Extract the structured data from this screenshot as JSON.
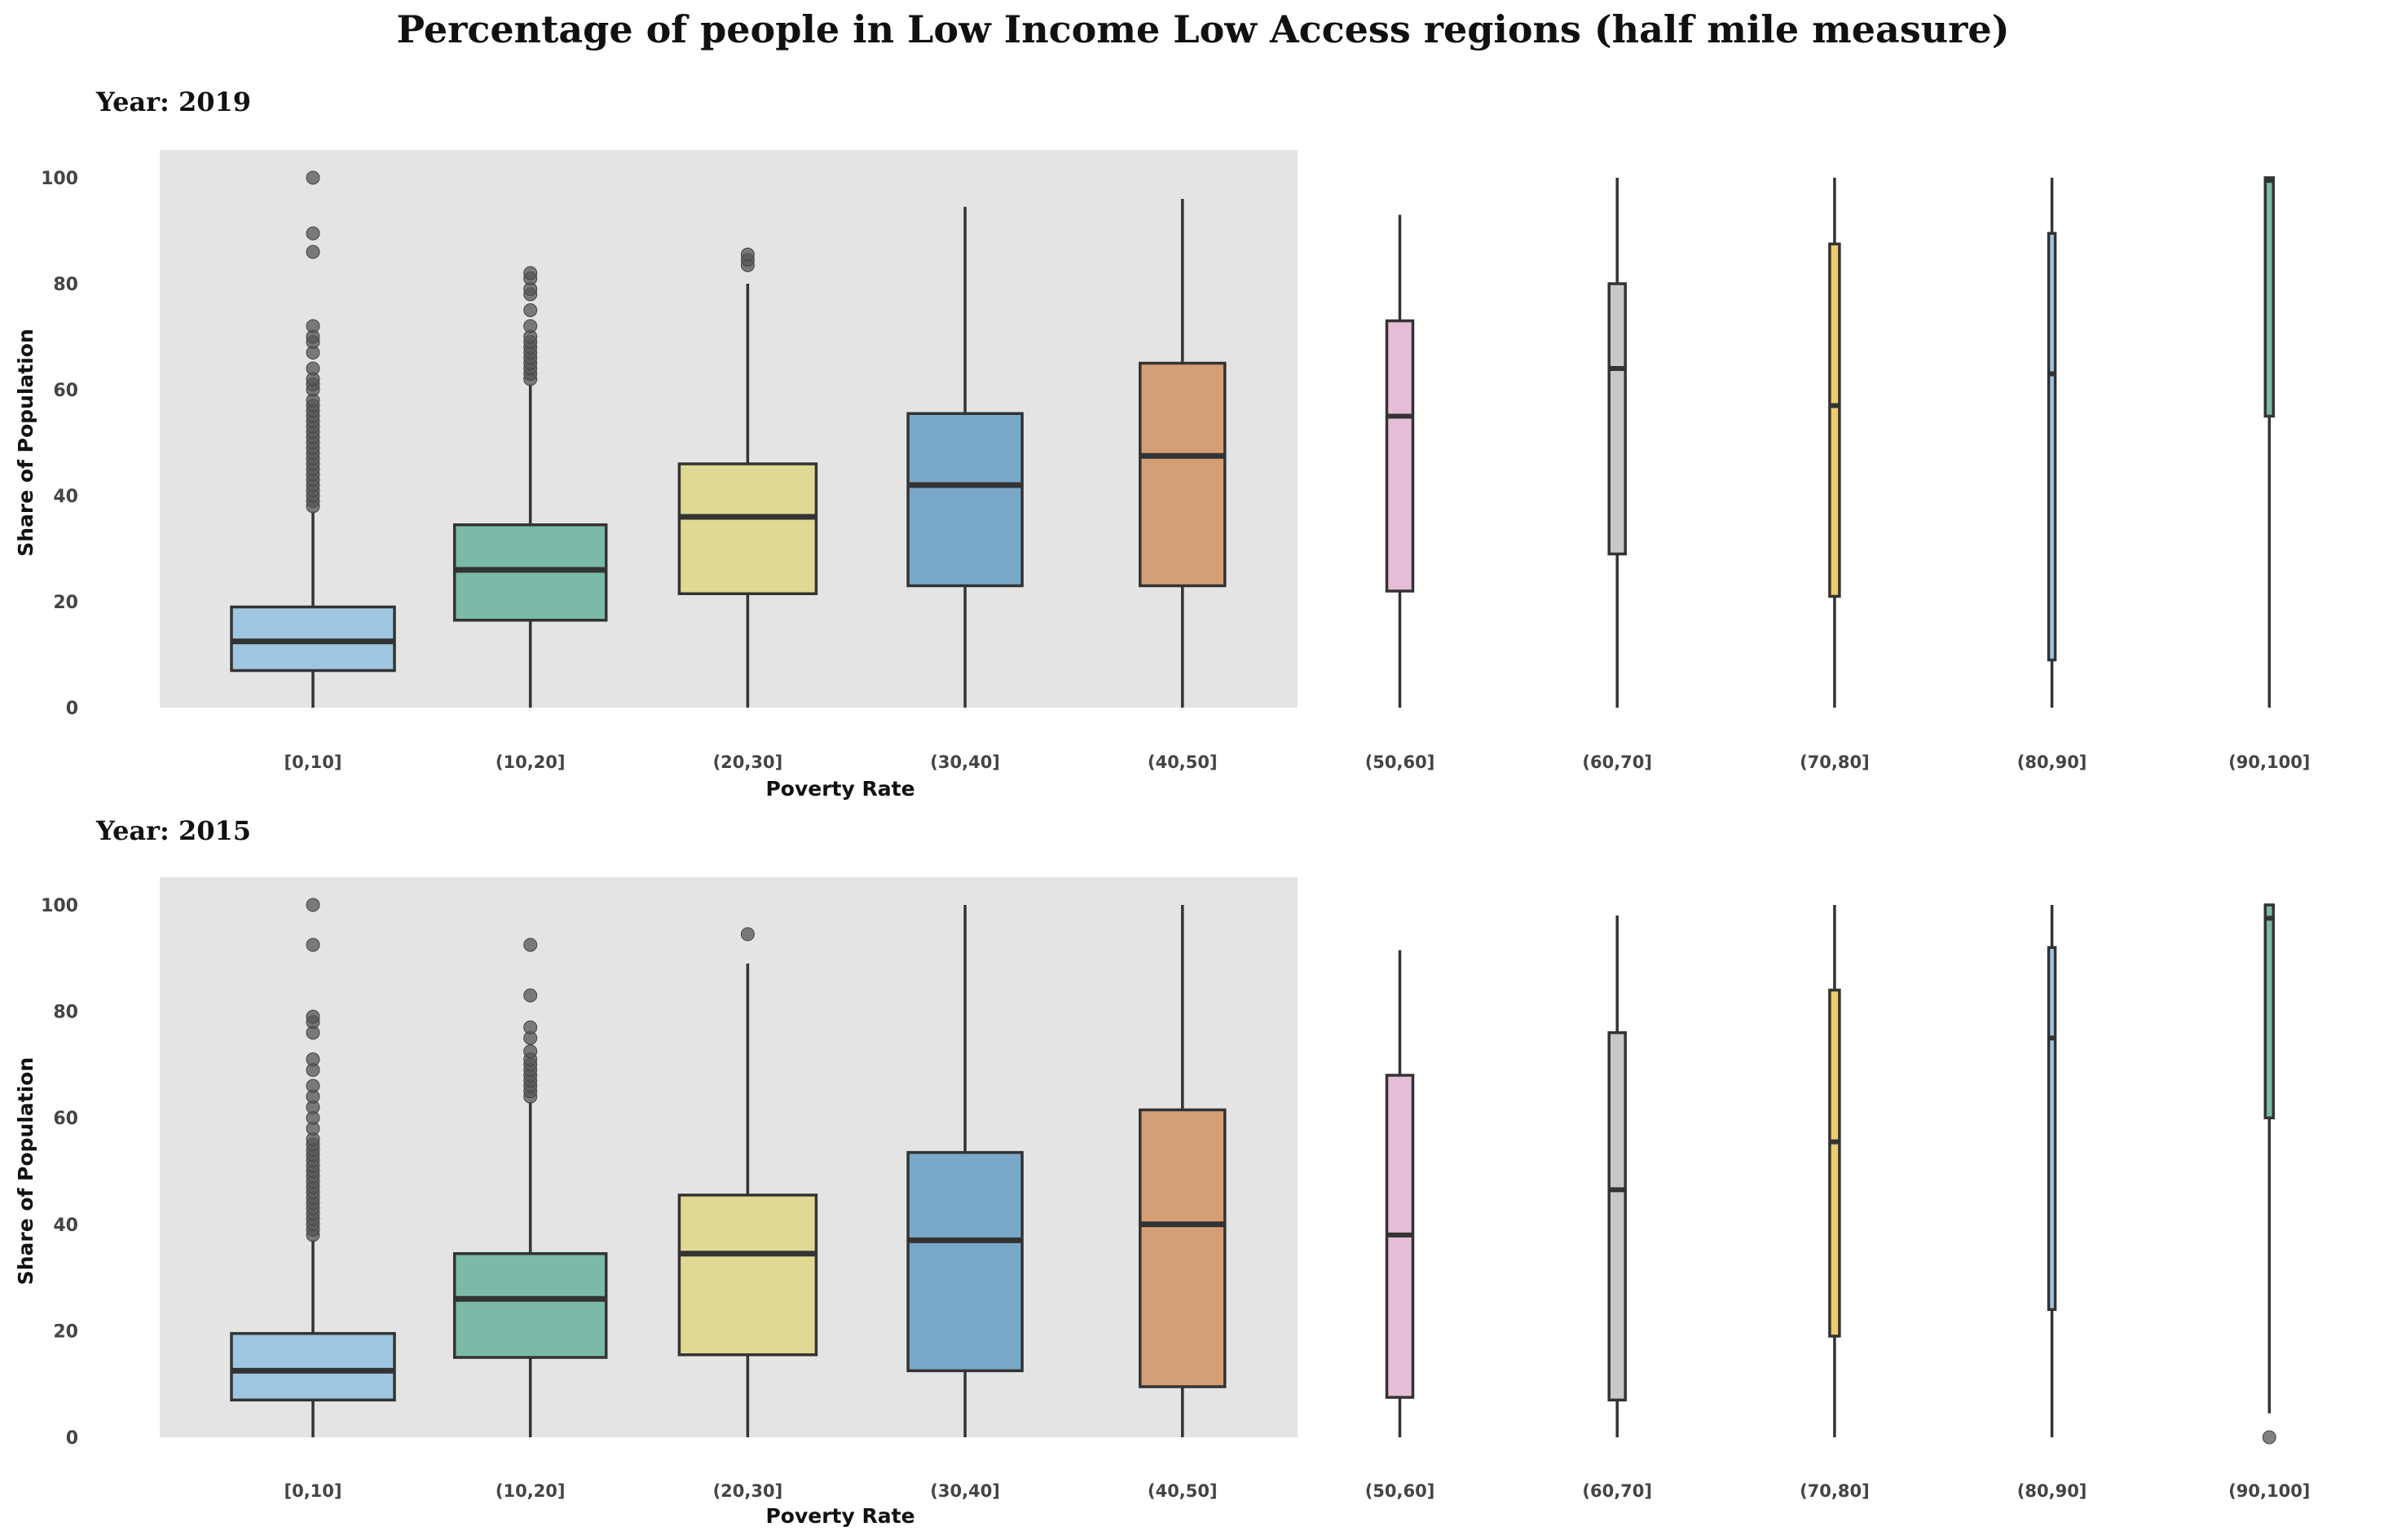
{
  "title": "Percentage of people in Low Income Low Access regions (half mile measure)",
  "colors": {
    "shaded_background": "#e4e4e4",
    "line": "#333333",
    "outlier": "#555555",
    "palette": [
      "#9fc6e0",
      "#7bbaa8",
      "#dfd993",
      "#7aa8c9",
      "#d59f76",
      "#e6bdd6",
      "#c8c8c8",
      "#efcb6c",
      "#9fc6e0",
      "#7bbaa8"
    ]
  },
  "chart_data": [
    {
      "type": "box",
      "subtitle": "Year: 2019",
      "xlabel": "Poverty Rate",
      "ylabel": "Share of Population",
      "ylim": [
        0,
        100
      ],
      "yticks": [
        0,
        20,
        40,
        60,
        80,
        100
      ],
      "grid": false,
      "categories": [
        "[0,10]",
        "(10,20]",
        "(20,30]",
        "(30,40]",
        "(40,50]",
        "(50,60]",
        "(60,70]",
        "(70,80]",
        "(80,90]",
        "(90,100]"
      ],
      "boxes": [
        {
          "whisker_low": 0,
          "q1": 7,
          "median": 12.5,
          "q3": 19,
          "whisker_high": 37,
          "outliers": [
            38,
            39,
            40,
            41,
            42,
            43,
            44,
            45,
            46,
            47,
            48,
            49,
            50,
            51,
            52,
            53,
            54,
            55,
            56,
            57,
            58,
            60,
            61,
            62,
            64,
            67,
            69,
            70,
            72,
            86,
            89.5,
            100
          ]
        },
        {
          "whisker_low": 0,
          "q1": 16.5,
          "median": 26,
          "q3": 34.5,
          "whisker_high": 61,
          "outliers": [
            62,
            63,
            64,
            65,
            66,
            67,
            68,
            69,
            70,
            72,
            75,
            78,
            79,
            81,
            82
          ]
        },
        {
          "whisker_low": 0,
          "q1": 21.5,
          "median": 36,
          "q3": 46,
          "whisker_high": 80,
          "outliers": [
            83.5,
            84.5,
            85.5
          ]
        },
        {
          "whisker_low": 0,
          "q1": 23,
          "median": 42,
          "q3": 55.5,
          "whisker_high": 94.5,
          "outliers": []
        },
        {
          "whisker_low": 0,
          "q1": 23,
          "median": 47.5,
          "q3": 65,
          "whisker_high": 96,
          "outliers": []
        },
        {
          "whisker_low": 0,
          "q1": 22,
          "median": 55,
          "q3": 73,
          "whisker_high": 93,
          "outliers": []
        },
        {
          "whisker_low": 0,
          "q1": 29,
          "median": 64,
          "q3": 80,
          "whisker_high": 100,
          "outliers": []
        },
        {
          "whisker_low": 0,
          "q1": 21,
          "median": 57,
          "q3": 87.5,
          "whisker_high": 100,
          "outliers": []
        },
        {
          "whisker_low": 0,
          "q1": 9,
          "median": 63,
          "q3": 89.5,
          "whisker_high": 100,
          "outliers": []
        },
        {
          "whisker_low": 0,
          "q1": 55,
          "median": 99.5,
          "q3": 100,
          "whisker_high": 100,
          "outliers": []
        }
      ]
    },
    {
      "type": "box",
      "subtitle": "Year: 2015",
      "xlabel": "Poverty Rate",
      "ylabel": "Share of Population",
      "ylim": [
        0,
        100
      ],
      "yticks": [
        0,
        20,
        40,
        60,
        80,
        100
      ],
      "grid": false,
      "categories": [
        "[0,10]",
        "(10,20]",
        "(20,30]",
        "(30,40]",
        "(40,50]",
        "(50,60]",
        "(60,70]",
        "(70,80]",
        "(80,90]",
        "(90,100]"
      ],
      "boxes": [
        {
          "whisker_low": 0,
          "q1": 7,
          "median": 12.5,
          "q3": 19.5,
          "whisker_high": 37,
          "outliers": [
            38,
            39,
            40,
            41,
            42,
            43,
            44,
            45,
            46,
            47,
            48,
            49,
            50,
            51,
            52,
            53,
            54,
            55,
            56,
            58,
            60,
            62,
            64,
            66,
            69,
            71,
            76,
            78,
            79,
            92.5,
            100
          ]
        },
        {
          "whisker_low": 0,
          "q1": 15,
          "median": 26,
          "q3": 34.5,
          "whisker_high": 63,
          "outliers": [
            64,
            65,
            66,
            67,
            68,
            69,
            70,
            71,
            72.5,
            75,
            77,
            83,
            92.5
          ]
        },
        {
          "whisker_low": 0,
          "q1": 15.5,
          "median": 34.5,
          "q3": 45.5,
          "whisker_high": 89,
          "outliers": [
            94.5
          ]
        },
        {
          "whisker_low": 0,
          "q1": 12.5,
          "median": 37,
          "q3": 53.5,
          "whisker_high": 100,
          "outliers": []
        },
        {
          "whisker_low": 0,
          "q1": 9.5,
          "median": 40,
          "q3": 61.5,
          "whisker_high": 100,
          "outliers": []
        },
        {
          "whisker_low": 0,
          "q1": 7.5,
          "median": 38,
          "q3": 68,
          "whisker_high": 91.5,
          "outliers": []
        },
        {
          "whisker_low": 0,
          "q1": 7,
          "median": 46.5,
          "q3": 76,
          "whisker_high": 98,
          "outliers": []
        },
        {
          "whisker_low": 0,
          "q1": 19,
          "median": 55.5,
          "q3": 84,
          "whisker_high": 100,
          "outliers": []
        },
        {
          "whisker_low": 0,
          "q1": 24,
          "median": 75,
          "q3": 92,
          "whisker_high": 100,
          "outliers": []
        },
        {
          "whisker_low": 4.5,
          "q1": 60,
          "median": 97.5,
          "q3": 100,
          "whisker_high": 100,
          "outliers": [
            0
          ]
        }
      ]
    }
  ]
}
